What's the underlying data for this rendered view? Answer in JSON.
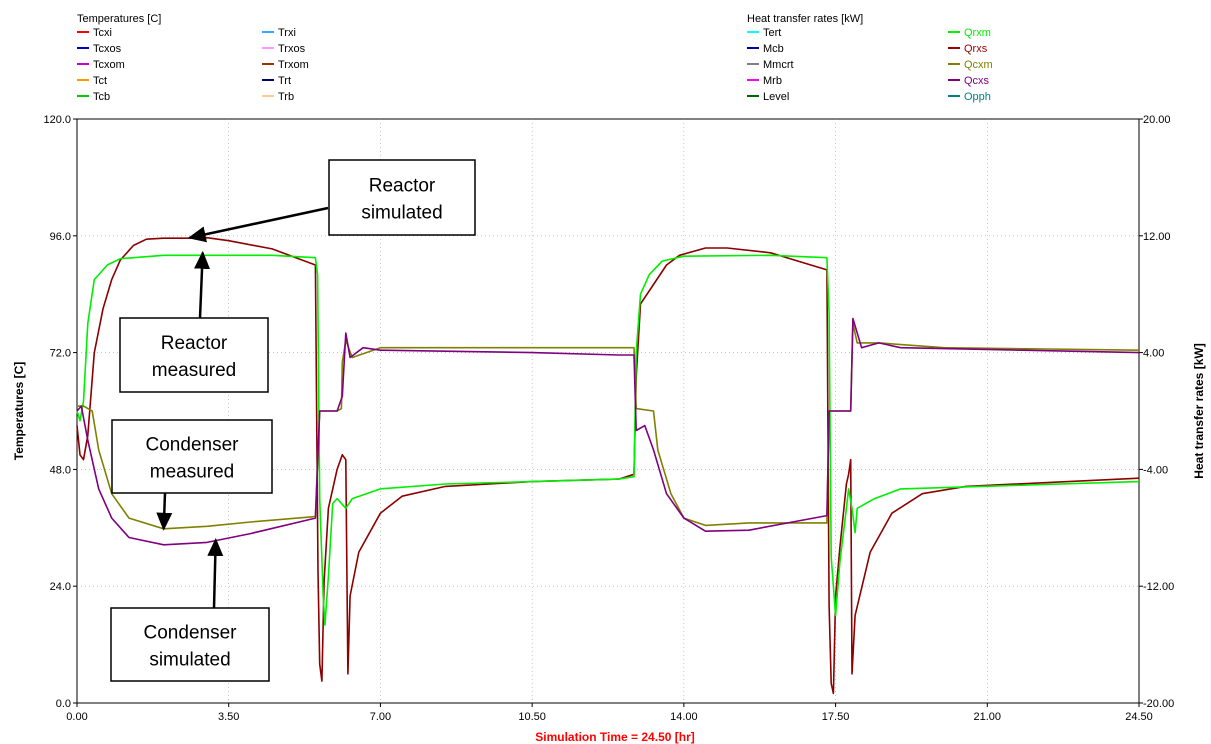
{
  "chart_data": {
    "type": "line",
    "legend_left": {
      "title": "Temperatures [C]",
      "entries": [
        {
          "name": "Tcxi",
          "color": "#ff0000"
        },
        {
          "name": "Tcxos",
          "color": "#0000cc"
        },
        {
          "name": "Tcxom",
          "color": "#cc00cc"
        },
        {
          "name": "Tct",
          "color": "#ff9900"
        },
        {
          "name": "Tcb",
          "color": "#00cc00"
        },
        {
          "name": "Trxi",
          "color": "#33aaff"
        },
        {
          "name": "Trxos",
          "color": "#ff99ff"
        },
        {
          "name": "Trxom",
          "color": "#993300"
        },
        {
          "name": "Trt",
          "color": "#000066"
        },
        {
          "name": "Trb",
          "color": "#ffcc99"
        }
      ]
    },
    "legend_right": {
      "title": "Heat   transfer rates [kW]",
      "entries": [
        {
          "name": "Tert",
          "color": "#00ffff"
        },
        {
          "name": "Mcb",
          "color": "#000099"
        },
        {
          "name": "Mmcrt",
          "color": "#808080"
        },
        {
          "name": "Mrb",
          "color": "#ff00ff"
        },
        {
          "name": "Level",
          "color": "#006600"
        },
        {
          "name": "Qrxm",
          "color": "#00ee00"
        },
        {
          "name": "Qrxs",
          "color": "#990000"
        },
        {
          "name": "Qcxm",
          "color": "#808000"
        },
        {
          "name": "Qcxs",
          "color": "#800080"
        },
        {
          "name": "Opph",
          "color": "#008080"
        }
      ]
    },
    "xlabel": "Simulation Time =  24.50 [hr]",
    "ylabel_left": "Temperatures [C]",
    "ylabel_right": "Heat   transfer rates [kW]",
    "xlim": [
      0,
      24.5
    ],
    "ylim_left": [
      0,
      120
    ],
    "ylim_right": [
      -20,
      20
    ],
    "x_ticks": [
      "0.00",
      "3.50",
      "7.00",
      "10.50",
      "14.00",
      "17.50",
      "21.00",
      "24.50"
    ],
    "y_left_ticks": [
      "0.0",
      "24.0",
      "48.0",
      "72.0",
      "96.0",
      "120.0"
    ],
    "y_right_ticks": [
      "-20.00",
      "-12.00",
      "-4.00",
      "4.00",
      "12.00",
      "20.00"
    ],
    "grid": true,
    "series": [
      {
        "name": "Qrxs",
        "color": "#8b0000",
        "points": [
          [
            0,
            57
          ],
          [
            0.07,
            51
          ],
          [
            0.15,
            50
          ],
          [
            0.25,
            55
          ],
          [
            0.4,
            72
          ],
          [
            0.6,
            81
          ],
          [
            0.8,
            87
          ],
          [
            1.0,
            91
          ],
          [
            1.3,
            94
          ],
          [
            1.6,
            95.3
          ],
          [
            2.0,
            95.5
          ],
          [
            2.5,
            95.5
          ],
          [
            3.0,
            95.6
          ],
          [
            3.5,
            95
          ],
          [
            4.5,
            93.3
          ],
          [
            5.5,
            90
          ],
          [
            5.56,
            27
          ],
          [
            5.6,
            8
          ],
          [
            5.65,
            4.5
          ],
          [
            5.7,
            25
          ],
          [
            5.8,
            40
          ],
          [
            6.0,
            48
          ],
          [
            6.12,
            51
          ],
          [
            6.2,
            50
          ],
          [
            6.25,
            6
          ],
          [
            6.3,
            22
          ],
          [
            6.5,
            31
          ],
          [
            7.0,
            39
          ],
          [
            7.5,
            42.5
          ],
          [
            8.5,
            44.5
          ],
          [
            10.5,
            45.5
          ],
          [
            12.5,
            46
          ],
          [
            12.85,
            47
          ],
          [
            12.9,
            67
          ],
          [
            13.0,
            82
          ],
          [
            13.3,
            86
          ],
          [
            13.6,
            90
          ],
          [
            13.9,
            92
          ],
          [
            14.5,
            93.5
          ],
          [
            15.0,
            93.5
          ],
          [
            16.0,
            92.5
          ],
          [
            17.3,
            89
          ],
          [
            17.35,
            20
          ],
          [
            17.4,
            4
          ],
          [
            17.45,
            2
          ],
          [
            17.5,
            22
          ],
          [
            17.6,
            32
          ],
          [
            17.75,
            45
          ],
          [
            17.8,
            47
          ],
          [
            17.85,
            50
          ],
          [
            17.88,
            6
          ],
          [
            17.95,
            18
          ],
          [
            18.3,
            31
          ],
          [
            18.8,
            39
          ],
          [
            19.5,
            43
          ],
          [
            20.5,
            44.5
          ],
          [
            24.5,
            46.2
          ]
        ]
      },
      {
        "name": "Qrxm",
        "color": "#00ee00",
        "points": [
          [
            0,
            60
          ],
          [
            0.07,
            58
          ],
          [
            0.15,
            62
          ],
          [
            0.25,
            78
          ],
          [
            0.4,
            87
          ],
          [
            0.7,
            90
          ],
          [
            1.0,
            91.3
          ],
          [
            2.0,
            92
          ],
          [
            3.0,
            92
          ],
          [
            4.5,
            92
          ],
          [
            5.5,
            91.5
          ],
          [
            5.55,
            88
          ],
          [
            5.6,
            42
          ],
          [
            5.68,
            22
          ],
          [
            5.72,
            16
          ],
          [
            5.8,
            26
          ],
          [
            5.9,
            41
          ],
          [
            6.0,
            42
          ],
          [
            6.2,
            40
          ],
          [
            6.35,
            42
          ],
          [
            7.0,
            44
          ],
          [
            8.5,
            45
          ],
          [
            10.5,
            45.5
          ],
          [
            12.5,
            46
          ],
          [
            12.85,
            46.5
          ],
          [
            12.9,
            72
          ],
          [
            13.0,
            84
          ],
          [
            13.2,
            88
          ],
          [
            13.5,
            90.8
          ],
          [
            14.0,
            91.8
          ],
          [
            16.0,
            92
          ],
          [
            17.3,
            91.5
          ],
          [
            17.35,
            80
          ],
          [
            17.4,
            30
          ],
          [
            17.5,
            18
          ],
          [
            17.6,
            29
          ],
          [
            17.75,
            40
          ],
          [
            17.8,
            44
          ],
          [
            17.88,
            40
          ],
          [
            17.95,
            35
          ],
          [
            18.0,
            40
          ],
          [
            18.4,
            42
          ],
          [
            19.0,
            44
          ],
          [
            24.5,
            45.5
          ]
        ]
      },
      {
        "name": "Qcxm",
        "color": "#808000",
        "points": [
          [
            0,
            61
          ],
          [
            0.15,
            61
          ],
          [
            0.35,
            60
          ],
          [
            0.5,
            52
          ],
          [
            0.8,
            43
          ],
          [
            1.2,
            38
          ],
          [
            2.0,
            35.8
          ],
          [
            3.0,
            36.3
          ],
          [
            4.0,
            37.2
          ],
          [
            5.5,
            38.3
          ],
          [
            5.6,
            60
          ],
          [
            6.0,
            60
          ],
          [
            6.1,
            60.5
          ],
          [
            6.12,
            70
          ],
          [
            6.2,
            74.5
          ],
          [
            6.35,
            71
          ],
          [
            7.0,
            73
          ],
          [
            10.5,
            73
          ],
          [
            12.5,
            73
          ],
          [
            12.85,
            73
          ],
          [
            12.9,
            60.5
          ],
          [
            13.3,
            60
          ],
          [
            13.4,
            52
          ],
          [
            13.7,
            43
          ],
          [
            14.0,
            38
          ],
          [
            14.5,
            36.5
          ],
          [
            15.5,
            37
          ],
          [
            17.3,
            37
          ],
          [
            17.35,
            60
          ],
          [
            17.85,
            60
          ],
          [
            17.9,
            78
          ],
          [
            18.0,
            74
          ],
          [
            18.5,
            74
          ],
          [
            20.0,
            73
          ],
          [
            24.5,
            72.5
          ]
        ]
      },
      {
        "name": "Qcxs",
        "color": "#800080",
        "points": [
          [
            0,
            60
          ],
          [
            0.1,
            61
          ],
          [
            0.25,
            54
          ],
          [
            0.5,
            44
          ],
          [
            0.8,
            38
          ],
          [
            1.2,
            34
          ],
          [
            2.0,
            32.5
          ],
          [
            3.0,
            33
          ],
          [
            4.0,
            34.8
          ],
          [
            5.5,
            38
          ],
          [
            5.6,
            60
          ],
          [
            6.0,
            60
          ],
          [
            6.12,
            63
          ],
          [
            6.2,
            76
          ],
          [
            6.3,
            71
          ],
          [
            6.6,
            73
          ],
          [
            7.0,
            72.5
          ],
          [
            10.5,
            72
          ],
          [
            12.5,
            71.5
          ],
          [
            12.85,
            71.5
          ],
          [
            12.9,
            56
          ],
          [
            13.1,
            57
          ],
          [
            13.3,
            52
          ],
          [
            13.6,
            43
          ],
          [
            14.0,
            38
          ],
          [
            14.5,
            35.3
          ],
          [
            15.5,
            35.5
          ],
          [
            17.3,
            38.5
          ],
          [
            17.35,
            60
          ],
          [
            17.85,
            60
          ],
          [
            17.9,
            79
          ],
          [
            18.1,
            73
          ],
          [
            18.5,
            74
          ],
          [
            19.0,
            73
          ],
          [
            24.5,
            72
          ]
        ]
      }
    ],
    "annotations": [
      {
        "line1": "Reactor",
        "line2": "simulated",
        "arrow_target": [
          2.6,
          95.6
        ]
      },
      {
        "line1": "Reactor",
        "line2": "measured",
        "arrow_target": [
          2.9,
          92.5
        ]
      },
      {
        "line1": "Condenser",
        "line2": "measured",
        "arrow_target": [
          2.0,
          35.8
        ]
      },
      {
        "line1": "Condenser",
        "line2": "simulated",
        "arrow_target": [
          3.2,
          33.5
        ]
      }
    ]
  }
}
